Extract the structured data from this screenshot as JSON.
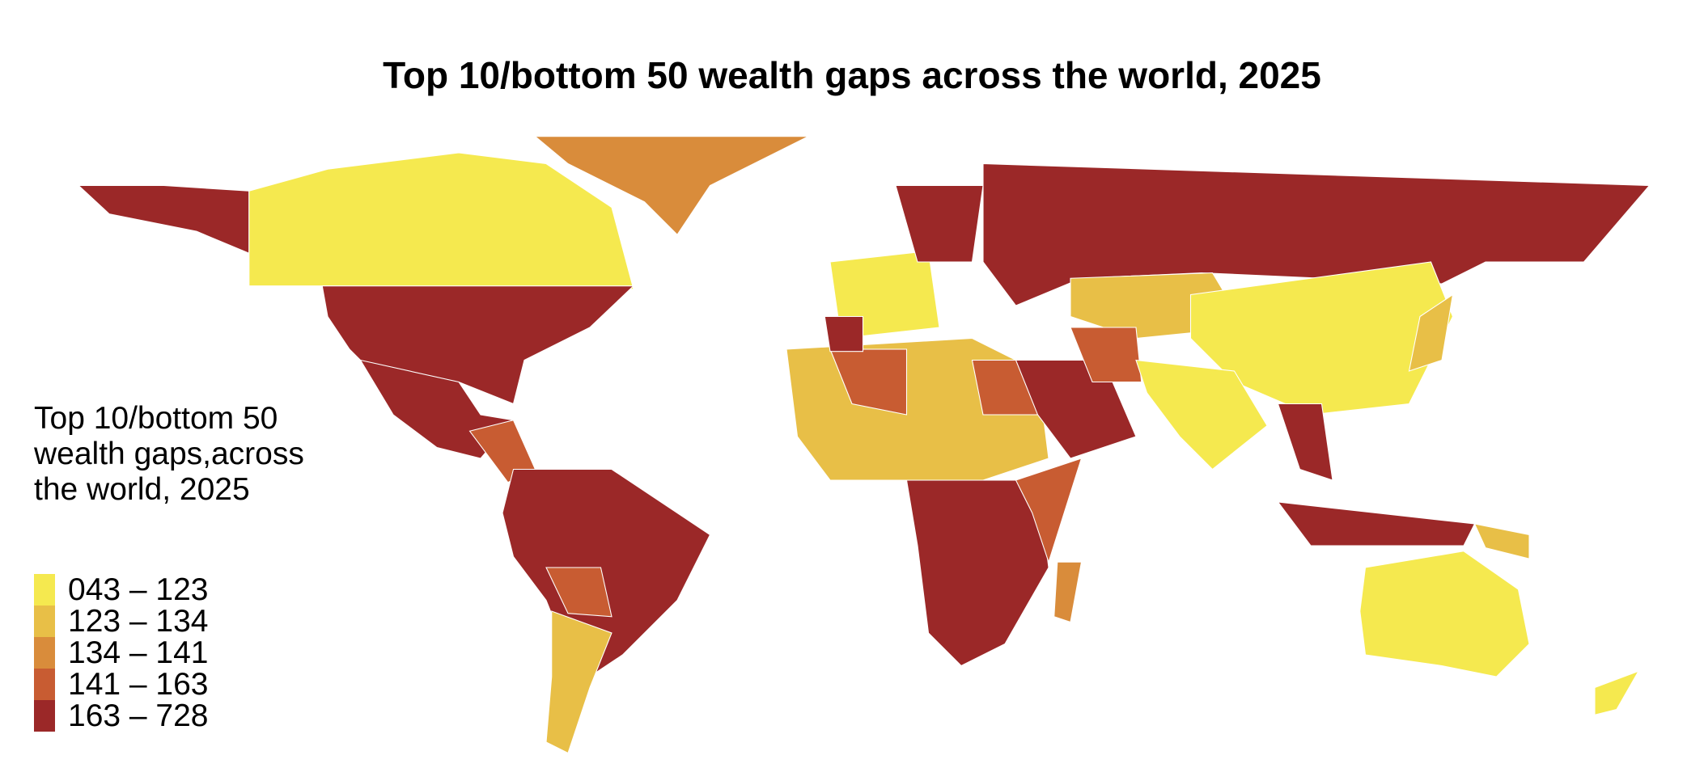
{
  "title": "Top 10/bottom 50 wealth gaps across the world, 2025",
  "legend": {
    "title": "Top 10/bottom 50 wealth gaps,across the world, 2025",
    "items": [
      {
        "label": "043 – 123",
        "color": "#f5e94f"
      },
      {
        "label": "123 – 134",
        "color": "#e8bf47"
      },
      {
        "label": "134 – 141",
        "color": "#d98c3b"
      },
      {
        "label": "141 – 163",
        "color": "#c85c32"
      },
      {
        "label": "163 – 728",
        "color": "#9b2828"
      }
    ]
  }
}
